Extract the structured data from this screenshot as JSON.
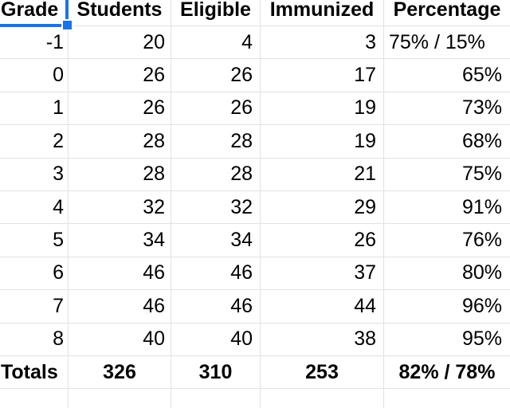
{
  "table": {
    "headers": [
      "Grade",
      "Students",
      "Eligible",
      "Immunized",
      "Percentage"
    ],
    "rows": [
      [
        "-1",
        "20",
        "4",
        "3",
        "75% / 15%"
      ],
      [
        "0",
        "26",
        "26",
        "17",
        "65%"
      ],
      [
        "1",
        "26",
        "26",
        "19",
        "73%"
      ],
      [
        "2",
        "28",
        "28",
        "19",
        "68%"
      ],
      [
        "3",
        "28",
        "28",
        "21",
        "75%"
      ],
      [
        "4",
        "32",
        "32",
        "29",
        "91%"
      ],
      [
        "5",
        "34",
        "34",
        "26",
        "76%"
      ],
      [
        "6",
        "46",
        "46",
        "37",
        "80%"
      ],
      [
        "7",
        "46",
        "46",
        "44",
        "96%"
      ],
      [
        "8",
        "40",
        "40",
        "38",
        "95%"
      ]
    ],
    "totals": [
      "Totals",
      "326",
      "310",
      "253",
      "82% / 78%"
    ]
  },
  "selection": {
    "selected_cell_text": "Grade",
    "accent_color": "#1a73e8"
  },
  "colors": {
    "gridline": "#e2e2e2",
    "text": "#000000",
    "background": "#ffffff"
  }
}
